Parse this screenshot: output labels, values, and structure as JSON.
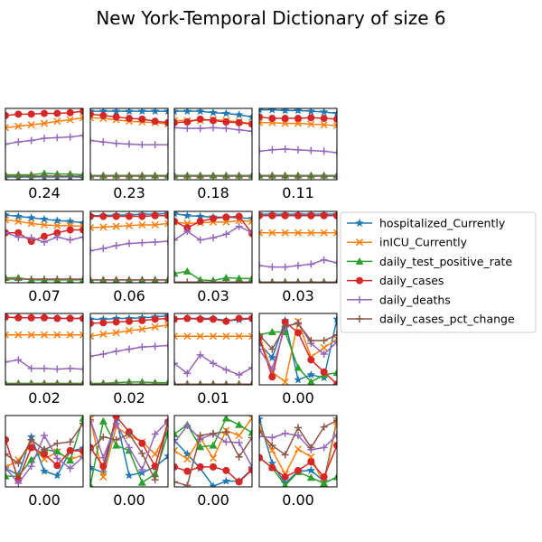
{
  "title": "New York-Temporal Dictionary of size 6",
  "chart_data": {
    "type": "line",
    "title": "New York-Temporal Dictionary of size 6",
    "grid_rows": 4,
    "grid_cols": 4,
    "ylim": [
      0,
      1
    ],
    "grid": false,
    "legend_position": "right",
    "series_meta": [
      {
        "name": "hospitalized_Currently",
        "color": "#1f77b4",
        "marker": "star"
      },
      {
        "name": "inICU_Currently",
        "color": "#ff7f0e",
        "marker": "x"
      },
      {
        "name": "daily_test_positive_rate",
        "color": "#2ca02c",
        "marker": "triangle"
      },
      {
        "name": "daily_cases",
        "color": "#d62728",
        "marker": "circle"
      },
      {
        "name": "daily_deaths",
        "color": "#9467bd",
        "marker": "plus"
      },
      {
        "name": "daily_cases_pct_change",
        "color": "#8c564b",
        "marker": "plus"
      }
    ],
    "panels": [
      {
        "label": "0.24",
        "series": [
          [
            0.04,
            0.04,
            0.04,
            0.04,
            0.04,
            0.04,
            0.04
          ],
          [
            0.73,
            0.75,
            0.77,
            0.79,
            0.82,
            0.84,
            0.87
          ],
          [
            0.07,
            0.07,
            0.07,
            0.09,
            0.08,
            0.08,
            0.07
          ],
          [
            0.9,
            0.92,
            0.92,
            0.93,
            0.93,
            0.94,
            0.96
          ],
          [
            0.5,
            0.53,
            0.55,
            0.58,
            0.59,
            0.6,
            0.62
          ],
          [
            0.05,
            0.05,
            0.05,
            0.05,
            0.05,
            0.05,
            0.05
          ]
        ]
      },
      {
        "label": "0.23",
        "series": [
          [
            0.96,
            0.96,
            0.96,
            0.96,
            0.96,
            0.96,
            0.96
          ],
          [
            0.87,
            0.86,
            0.84,
            0.82,
            0.81,
            0.8,
            0.78
          ],
          [
            0.06,
            0.06,
            0.06,
            0.06,
            0.06,
            0.06,
            0.06
          ],
          [
            0.92,
            0.9,
            0.88,
            0.86,
            0.85,
            0.82,
            0.8
          ],
          [
            0.55,
            0.53,
            0.51,
            0.5,
            0.49,
            0.49,
            0.49
          ],
          [
            0.05,
            0.05,
            0.05,
            0.05,
            0.05,
            0.05,
            0.05
          ]
        ]
      },
      {
        "label": "0.18",
        "series": [
          [
            0.96,
            0.96,
            0.96,
            0.94,
            0.93,
            0.91,
            0.88
          ],
          [
            0.83,
            0.83,
            0.83,
            0.84,
            0.83,
            0.81,
            0.79
          ],
          [
            0.06,
            0.06,
            0.06,
            0.06,
            0.06,
            0.06,
            0.06
          ],
          [
            0.8,
            0.81,
            0.85,
            0.83,
            0.81,
            0.8,
            0.78
          ],
          [
            0.73,
            0.72,
            0.72,
            0.73,
            0.72,
            0.7,
            0.68
          ],
          [
            0.05,
            0.05,
            0.05,
            0.05,
            0.05,
            0.05,
            0.05
          ]
        ]
      },
      {
        "label": "0.11",
        "series": [
          [
            0.98,
            0.98,
            0.97,
            0.97,
            0.96,
            0.95,
            0.93
          ],
          [
            0.8,
            0.8,
            0.79,
            0.79,
            0.78,
            0.77,
            0.76
          ],
          [
            0.06,
            0.06,
            0.06,
            0.06,
            0.06,
            0.06,
            0.06
          ],
          [
            0.88,
            0.86,
            0.86,
            0.86,
            0.87,
            0.86,
            0.85
          ],
          [
            0.4,
            0.42,
            0.43,
            0.42,
            0.41,
            0.4,
            0.38
          ],
          [
            0.05,
            0.05,
            0.05,
            0.05,
            0.05,
            0.05,
            0.05
          ]
        ]
      },
      {
        "label": "0.07",
        "series": [
          [
            0.95,
            0.93,
            0.91,
            0.89,
            0.87,
            0.86,
            0.84
          ],
          [
            0.88,
            0.86,
            0.83,
            0.81,
            0.8,
            0.8,
            0.79
          ],
          [
            0.07,
            0.07,
            0.04,
            0.04,
            0.04,
            0.04,
            0.04
          ],
          [
            0.7,
            0.7,
            0.58,
            0.65,
            0.7,
            0.74,
            0.74
          ],
          [
            0.7,
            0.64,
            0.63,
            0.57,
            0.64,
            0.6,
            0.64
          ],
          [
            0.05,
            0.05,
            0.05,
            0.05,
            0.05,
            0.05,
            0.05
          ]
        ]
      },
      {
        "label": "0.06",
        "series": [
          [
            0.94,
            0.94,
            0.95,
            0.95,
            0.96,
            0.96,
            0.97
          ],
          [
            0.77,
            0.78,
            0.79,
            0.8,
            0.81,
            0.81,
            0.83
          ],
          [
            0.04,
            0.04,
            0.04,
            0.04,
            0.04,
            0.04,
            0.04
          ],
          [
            0.93,
            0.93,
            0.93,
            0.93,
            0.93,
            0.94,
            0.94
          ],
          [
            0.45,
            0.48,
            0.52,
            0.55,
            0.56,
            0.57,
            0.58
          ],
          [
            0.04,
            0.04,
            0.04,
            0.04,
            0.04,
            0.04,
            0.04
          ]
        ]
      },
      {
        "label": "0.03",
        "series": [
          [
            0.97,
            0.94,
            0.93,
            0.92,
            0.92,
            0.91,
            0.9
          ],
          [
            0.85,
            0.83,
            0.84,
            0.85,
            0.85,
            0.87,
            0.86
          ],
          [
            0.13,
            0.16,
            0.04,
            0.03,
            0.07,
            0.06,
            0.06
          ],
          [
            0.86,
            0.77,
            0.86,
            0.9,
            0.92,
            0.93,
            0.69
          ],
          [
            0.6,
            0.72,
            0.6,
            0.63,
            0.68,
            0.79,
            0.7
          ],
          [
            0.01,
            0.01,
            0.01,
            0.01,
            0.01,
            0.01,
            0.01
          ]
        ]
      },
      {
        "label": "0.03",
        "series": [
          [
            0.96,
            0.96,
            0.96,
            0.96,
            0.96,
            0.96,
            0.96
          ],
          [
            0.7,
            0.7,
            0.7,
            0.7,
            0.7,
            0.7,
            0.7
          ],
          [
            0.01,
            0.01,
            0.01,
            0.01,
            0.01,
            0.01,
            0.01
          ],
          [
            0.94,
            0.94,
            0.94,
            0.94,
            0.94,
            0.94,
            0.94
          ],
          [
            0.24,
            0.22,
            0.22,
            0.24,
            0.26,
            0.32,
            0.28
          ],
          [
            0.01,
            0.01,
            0.01,
            0.01,
            0.01,
            0.01,
            0.01
          ]
        ]
      },
      {
        "label": "0.02",
        "series": [
          [
            0.95,
            0.94,
            0.94,
            0.94,
            0.93,
            0.93,
            0.93
          ],
          [
            0.7,
            0.7,
            0.7,
            0.7,
            0.7,
            0.7,
            0.7
          ],
          [
            0.02,
            0.02,
            0.02,
            0.02,
            0.02,
            0.02,
            0.02
          ],
          [
            0.95,
            0.94,
            0.94,
            0.94,
            0.93,
            0.93,
            0.93
          ],
          [
            0.32,
            0.35,
            0.23,
            0.23,
            0.22,
            0.23,
            0.22
          ],
          [
            0.01,
            0.01,
            0.01,
            0.01,
            0.01,
            0.01,
            0.01
          ]
        ]
      },
      {
        "label": "0.02",
        "series": [
          [
            0.92,
            0.92,
            0.93,
            0.93,
            0.94,
            0.95,
            0.97
          ],
          [
            0.68,
            0.71,
            0.73,
            0.76,
            0.78,
            0.81,
            0.84
          ],
          [
            0.02,
            0.02,
            0.03,
            0.04,
            0.04,
            0.03,
            0.03
          ],
          [
            0.86,
            0.87,
            0.88,
            0.89,
            0.9,
            0.92,
            0.93
          ],
          [
            0.4,
            0.43,
            0.47,
            0.5,
            0.53,
            0.54,
            0.55
          ],
          [
            0.01,
            0.01,
            0.01,
            0.01,
            0.01,
            0.01,
            0.01
          ]
        ]
      },
      {
        "label": "0.01",
        "series": [
          [
            0.92,
            0.93,
            0.93,
            0.93,
            0.9,
            0.91,
            0.93
          ],
          [
            0.68,
            0.68,
            0.68,
            0.68,
            0.68,
            0.68,
            0.68
          ],
          [
            0.01,
            0.01,
            0.01,
            0.01,
            0.01,
            0.01,
            0.01
          ],
          [
            0.92,
            0.93,
            0.92,
            0.92,
            0.89,
            0.93,
            0.93
          ],
          [
            0.3,
            0.16,
            0.42,
            0.3,
            0.21,
            0.14,
            0.24
          ],
          [
            0.01,
            0.01,
            0.01,
            0.01,
            0.01,
            0.01,
            0.01
          ]
        ]
      },
      {
        "label": "0.00",
        "series": [
          [
            0.58,
            0.38,
            0.9,
            0.07,
            0.14,
            0.1,
            0.92
          ],
          [
            0.68,
            0.18,
            0.04,
            0.89,
            0.39,
            0.52,
            0.64
          ],
          [
            0.7,
            0.74,
            0.74,
            0.24,
            0.04,
            0.14,
            0.17
          ],
          [
            0.66,
            0.11,
            0.88,
            0.73,
            0.35,
            0.18,
            0.01
          ],
          [
            0.5,
            0.22,
            0.81,
            0.87,
            0.58,
            0.43,
            0.6
          ],
          [
            0.7,
            0.5,
            0.82,
            0.86,
            0.62,
            0.62,
            0.7
          ]
        ]
      },
      {
        "label": "0.00",
        "series": [
          [
            0.26,
            0.17,
            0.7,
            0.22,
            0.16,
            0.5,
            0.54
          ],
          [
            0.27,
            0.38,
            0.58,
            0.39,
            0.49,
            0.38,
            0.45
          ],
          [
            0.15,
            0.15,
            0.38,
            0.52,
            0.5,
            0.37,
            0.96
          ],
          [
            0.66,
            0.1,
            0.55,
            0.46,
            0.3,
            0.51,
            0.5
          ],
          [
            0.27,
            0.05,
            0.29,
            0.72,
            0.4,
            0.26,
            0.42
          ],
          [
            0.46,
            0.33,
            0.66,
            0.52,
            0.61,
            0.63,
            0.89
          ]
        ]
      },
      {
        "label": "0.00",
        "series": [
          [
            0.27,
            0.2,
            0.96,
            0.16,
            0.2,
            0.28,
            0.43
          ],
          [
            0.95,
            0.14,
            0.84,
            0.72,
            0.63,
            0.46,
            0.78
          ],
          [
            0.02,
            0.92,
            0.58,
            0.51,
            0.06,
            0.18,
            0.75
          ],
          [
            0.55,
            0.29,
            0.99,
            0.77,
            0.61,
            0.29,
            0.91
          ],
          [
            0.94,
            0.41,
            0.89,
            0.55,
            0.24,
            0.74,
            0.92
          ],
          [
            0.52,
            0.7,
            0.66,
            0.74,
            0.47,
            0.1,
            0.92
          ]
        ]
      },
      {
        "label": "0.00",
        "series": [
          [
            0.65,
            0.46,
            0.26,
            0.01,
            0.08,
            0.08,
            0.25
          ],
          [
            0.51,
            0.39,
            0.69,
            0.4,
            0.79,
            0.72,
            0.96
          ],
          [
            0.74,
            0.87,
            0.56,
            0.58,
            0.96,
            0.87,
            0.76
          ],
          [
            0.28,
            0.22,
            0.28,
            0.28,
            0.23,
            0.07,
            0.24
          ],
          [
            0.62,
            0.86,
            0.67,
            0.74,
            0.63,
            0.62,
            0.28
          ],
          [
            0.07,
            0.02,
            0.72,
            0.75,
            0.77,
            0.42,
            0.69
          ]
        ]
      },
      {
        "label": "0.00",
        "series": [
          [
            0.95,
            0.33,
            0.05,
            0.22,
            0.23,
            0.08,
            0.95
          ],
          [
            0.83,
            0.51,
            0.18,
            0.53,
            0.42,
            0.04,
            0.92
          ],
          [
            0.41,
            0.27,
            0.02,
            0.21,
            0.13,
            0.05,
            0.14
          ],
          [
            0.41,
            0.27,
            0.14,
            0.23,
            0.35,
            0.14,
            0.58
          ],
          [
            0.71,
            0.69,
            0.75,
            0.72,
            0.52,
            0.55,
            0.73
          ],
          [
            0.78,
            0.58,
            0.45,
            0.83,
            0.55,
            0.84,
            0.93
          ]
        ]
      }
    ]
  }
}
